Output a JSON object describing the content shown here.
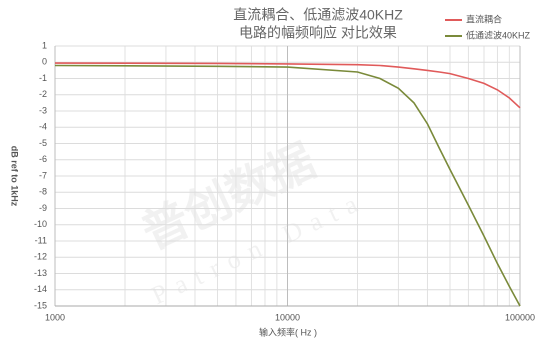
{
  "chart_data": {
    "type": "line",
    "title": [
      "直流耦合、低通滤波40KHZ",
      "电路的幅频响应 对比效果"
    ],
    "xlabel": "输入频率( Hz )",
    "ylabel": "dB ref to 1kHz",
    "watermark": [
      "普创数据",
      "Patron Data"
    ],
    "xscale": "log",
    "xlim": [
      1000,
      100000
    ],
    "xticks": [
      1000,
      10000,
      100000
    ],
    "xminorticks": [
      2000,
      3000,
      4000,
      5000,
      6000,
      7000,
      8000,
      9000,
      20000,
      30000,
      40000,
      50000,
      60000,
      70000,
      80000,
      90000
    ],
    "ylim": [
      -15,
      1
    ],
    "yticks": [
      1,
      0,
      -1,
      -2,
      -3,
      -4,
      -5,
      -6,
      -7,
      -8,
      -9,
      -10,
      -11,
      -12,
      -13,
      -14,
      -15
    ],
    "grid": true,
    "legend": "upper right",
    "x": [
      1000,
      5000,
      10000,
      20000,
      25000,
      30000,
      35000,
      40000,
      45000,
      50000,
      60000,
      70000,
      80000,
      90000,
      100000
    ],
    "series": [
      {
        "name": "直流耦合",
        "color": "#e05a5a",
        "values": [
          -0.05,
          -0.07,
          -0.1,
          -0.15,
          -0.2,
          -0.3,
          -0.4,
          -0.5,
          -0.6,
          -0.7,
          -1,
          -1.3,
          -1.7,
          -2.2,
          -2.8
        ]
      },
      {
        "name": "低通滤波40KHZ",
        "color": "#7a8a3a",
        "values": [
          -0.2,
          -0.25,
          -0.3,
          -0.6,
          -1,
          -1.6,
          -2.5,
          -3.8,
          -5.3,
          -6.6,
          -8.8,
          -10.7,
          -12.4,
          -13.8,
          -15
        ]
      }
    ]
  }
}
